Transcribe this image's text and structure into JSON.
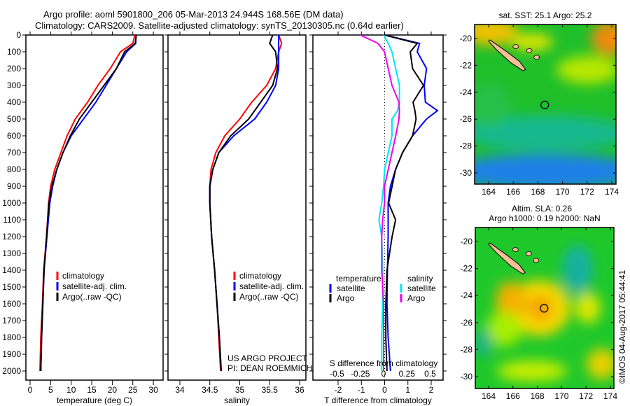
{
  "header": {
    "title_line1": "Argo profile: aoml 5901800_206 05-Mar-2013 24.944S 168.56E (DM data)",
    "title_line2": "Climatology: CARS2009. Satellite-adjusted climatology: synTS_20130305.nc (0.64d earlier)"
  },
  "annotations": {
    "project": "US ARGO PROJECT",
    "pi": "PI: DEAN ROEMMICH",
    "copyright": "©IMOS 04-Aug-2017 05:44:41"
  },
  "colors": {
    "climatology": "#ff0000",
    "satellite": "#0000ff",
    "argo": "#000000",
    "sal_satellite": "#00e5ee",
    "sal_argo": "#ee00ee"
  },
  "chart_data": [
    {
      "type": "line",
      "name": "temperature",
      "xlabel": "temperature (deg C)",
      "ylabel": "",
      "xlim": [
        -1,
        31
      ],
      "ylim": [
        2060,
        0
      ],
      "xticks": [
        0,
        5,
        10,
        15,
        20,
        25,
        30
      ],
      "yticks": [
        0,
        100,
        200,
        300,
        400,
        500,
        600,
        700,
        800,
        900,
        1000,
        1100,
        1200,
        1300,
        1400,
        1500,
        1600,
        1700,
        1800,
        1900,
        2000
      ],
      "depth": [
        0,
        50,
        100,
        200,
        300,
        400,
        500,
        600,
        700,
        800,
        900,
        1000,
        1200,
        1400,
        1600,
        1800,
        2000
      ],
      "legend": [
        "climatology",
        "satellite-adj. clim.",
        "Argo(..raw -QC)"
      ],
      "series": [
        {
          "name": "climatology",
          "values": [
            25.5,
            25,
            22,
            19.5,
            16.5,
            14,
            11,
            9,
            7.5,
            6,
            5,
            4.5,
            4,
            3.3,
            3,
            2.6,
            2.4
          ]
        },
        {
          "name": "satellite-adj. clim.",
          "values": [
            25.8,
            25.7,
            23.5,
            21,
            18.5,
            16,
            13,
            10,
            8,
            6.5,
            5.5,
            4.8,
            4.1,
            3.4,
            3.1,
            2.8,
            2.6
          ]
        },
        {
          "name": "Argo(..raw -QC)",
          "values": [
            25.8,
            25.6,
            23,
            21,
            18,
            15,
            12,
            9.8,
            8,
            6.5,
            5.3,
            4.6,
            4,
            3.4,
            3.1,
            2.8,
            2.6
          ]
        }
      ]
    },
    {
      "type": "line",
      "name": "salinity",
      "xlabel": "salinity",
      "xlim": [
        33.8,
        36.1
      ],
      "ylim": [
        2060,
        0
      ],
      "xticks": [
        34,
        34.5,
        35,
        35.5,
        36
      ],
      "depth": [
        0,
        50,
        100,
        200,
        300,
        400,
        500,
        600,
        700,
        800,
        900,
        1000,
        1200,
        1400,
        1600,
        1800,
        2000
      ],
      "legend": [
        "climatology",
        "satellite-adj. clim.",
        "Argo(..raw -QC)"
      ],
      "series": [
        {
          "name": "climatology",
          "values": [
            35.65,
            35.7,
            35.65,
            35.6,
            35.45,
            35.2,
            35.0,
            34.75,
            34.6,
            34.52,
            34.5,
            34.5,
            34.53,
            34.58,
            34.62,
            34.65,
            34.68
          ]
        },
        {
          "name": "satellite-adj. clim.",
          "values": [
            35.65,
            35.65,
            35.65,
            35.65,
            35.6,
            35.45,
            35.25,
            34.9,
            34.65,
            34.55,
            34.5,
            34.5,
            34.53,
            34.58,
            34.62,
            34.66,
            34.69
          ]
        },
        {
          "name": "Argo(..raw -QC)",
          "values": [
            35.55,
            35.5,
            35.6,
            35.63,
            35.55,
            35.35,
            35.15,
            34.85,
            34.65,
            34.55,
            34.5,
            34.5,
            34.53,
            34.58,
            34.62,
            34.66,
            34.69
          ]
        }
      ]
    },
    {
      "type": "line",
      "name": "differences",
      "xlabel": "T difference from climatology",
      "xlabel_top": "S difference from climatology",
      "xlim": [
        -3.1,
        2.5
      ],
      "ylim": [
        2060,
        0
      ],
      "xticks": [
        -2,
        -1,
        0,
        1,
        2
      ],
      "xticks_s": [
        -0.5,
        -0.25,
        0,
        0.25,
        0.5
      ],
      "depth": [
        0,
        50,
        100,
        200,
        300,
        400,
        450,
        500,
        600,
        700,
        800,
        900,
        1000,
        1100,
        1200,
        1400,
        1600,
        1800,
        2000
      ],
      "legend_t_title": "temperature",
      "legend_s_title": "salinity",
      "legend": [
        "satellite",
        "Argo",
        "satellite",
        "Argo"
      ],
      "series": [
        {
          "name": "T satellite",
          "axis": "T",
          "values": [
            0,
            1.5,
            1.4,
            1.8,
            1.7,
            1.75,
            2.27,
            1.8,
            1.2,
            0.77,
            0.47,
            0.25,
            0.15,
            0.15,
            0.15,
            0.12,
            0.1,
            0.15,
            0.25
          ]
        },
        {
          "name": "T Argo",
          "axis": "T",
          "values": [
            0,
            1.4,
            1.1,
            1.2,
            1.67,
            1.22,
            1.3,
            1.35,
            1.2,
            0.77,
            0.47,
            0.32,
            0.17,
            0.47,
            0.32,
            0.1,
            0.05,
            0.05,
            0.1
          ]
        },
        {
          "name": "S satellite",
          "axis": "S",
          "values": [
            0,
            0.05,
            0.09,
            0.13,
            0.17,
            0.17,
            0.15,
            0.09,
            0.09,
            0.05,
            0.01,
            0,
            -0.02,
            -0.05,
            -0.02,
            -0.01,
            -0.01,
            -0.02,
            -0.02
          ]
        },
        {
          "name": "S Argo",
          "axis": "S",
          "values": [
            -0.25,
            -0.06,
            0.01,
            0.05,
            0.09,
            0.165,
            0.17,
            0.165,
            0.13,
            0.09,
            0.05,
            0.01,
            0.01,
            -0.01,
            -0.02,
            -0.02,
            0,
            0,
            0
          ]
        }
      ]
    },
    {
      "type": "heatmap",
      "name": "sst-map",
      "title": "sat. SST: 25.1  Argo: 25.2",
      "xlim": [
        163,
        174.3
      ],
      "ylim": [
        -31,
        -19
      ],
      "xticks": [
        164,
        166,
        168,
        170,
        172,
        174
      ],
      "yticks": [
        -20,
        -22,
        -24,
        -26,
        -28,
        -30
      ],
      "marker": {
        "lon": 168.56,
        "lat": -24.944
      }
    },
    {
      "type": "heatmap",
      "name": "sla-map",
      "title": "Altim. SLA: 0.26",
      "subtitle": "Argo h1000: 0.19 h2000: NaN",
      "xlim": [
        163,
        174.3
      ],
      "ylim": [
        -31,
        -19
      ],
      "xticks": [
        164,
        166,
        168,
        170,
        172,
        174
      ],
      "yticks": [
        -20,
        -22,
        -24,
        -26,
        -28,
        -30
      ],
      "marker": {
        "lon": 168.56,
        "lat": -24.944
      }
    }
  ]
}
